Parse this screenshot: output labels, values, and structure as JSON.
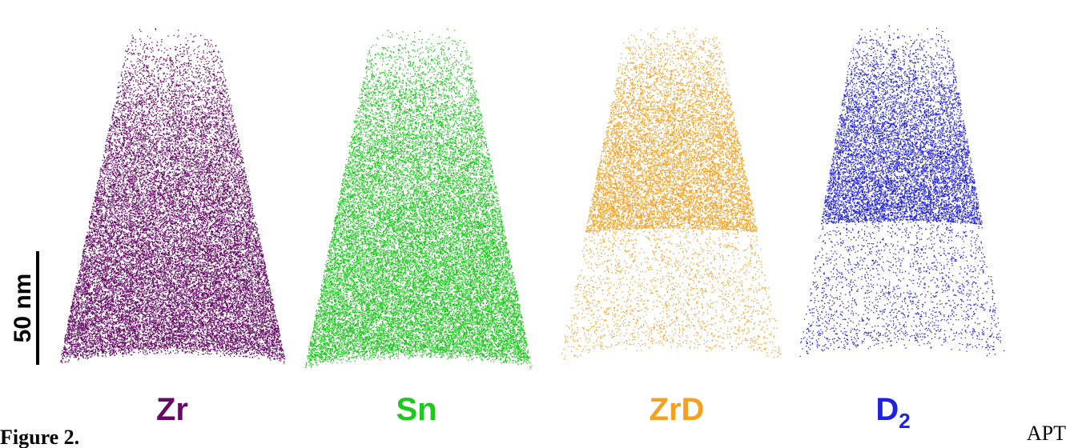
{
  "panels": [
    {
      "label": "Zr",
      "color": "#660a66",
      "cutoff": 1.0
    },
    {
      "label": "Sn",
      "color": "#1ec81e",
      "cutoff": 1.0
    },
    {
      "label": "ZrD",
      "color": "#f5a020",
      "cutoff": 0.62
    },
    {
      "label": "D",
      "subscript": "2",
      "color": "#2020e0",
      "cutoff": 0.6
    }
  ],
  "scale_bar": "50 nm",
  "caption": {
    "figure": "Figure 2.",
    "text": "APT"
  }
}
